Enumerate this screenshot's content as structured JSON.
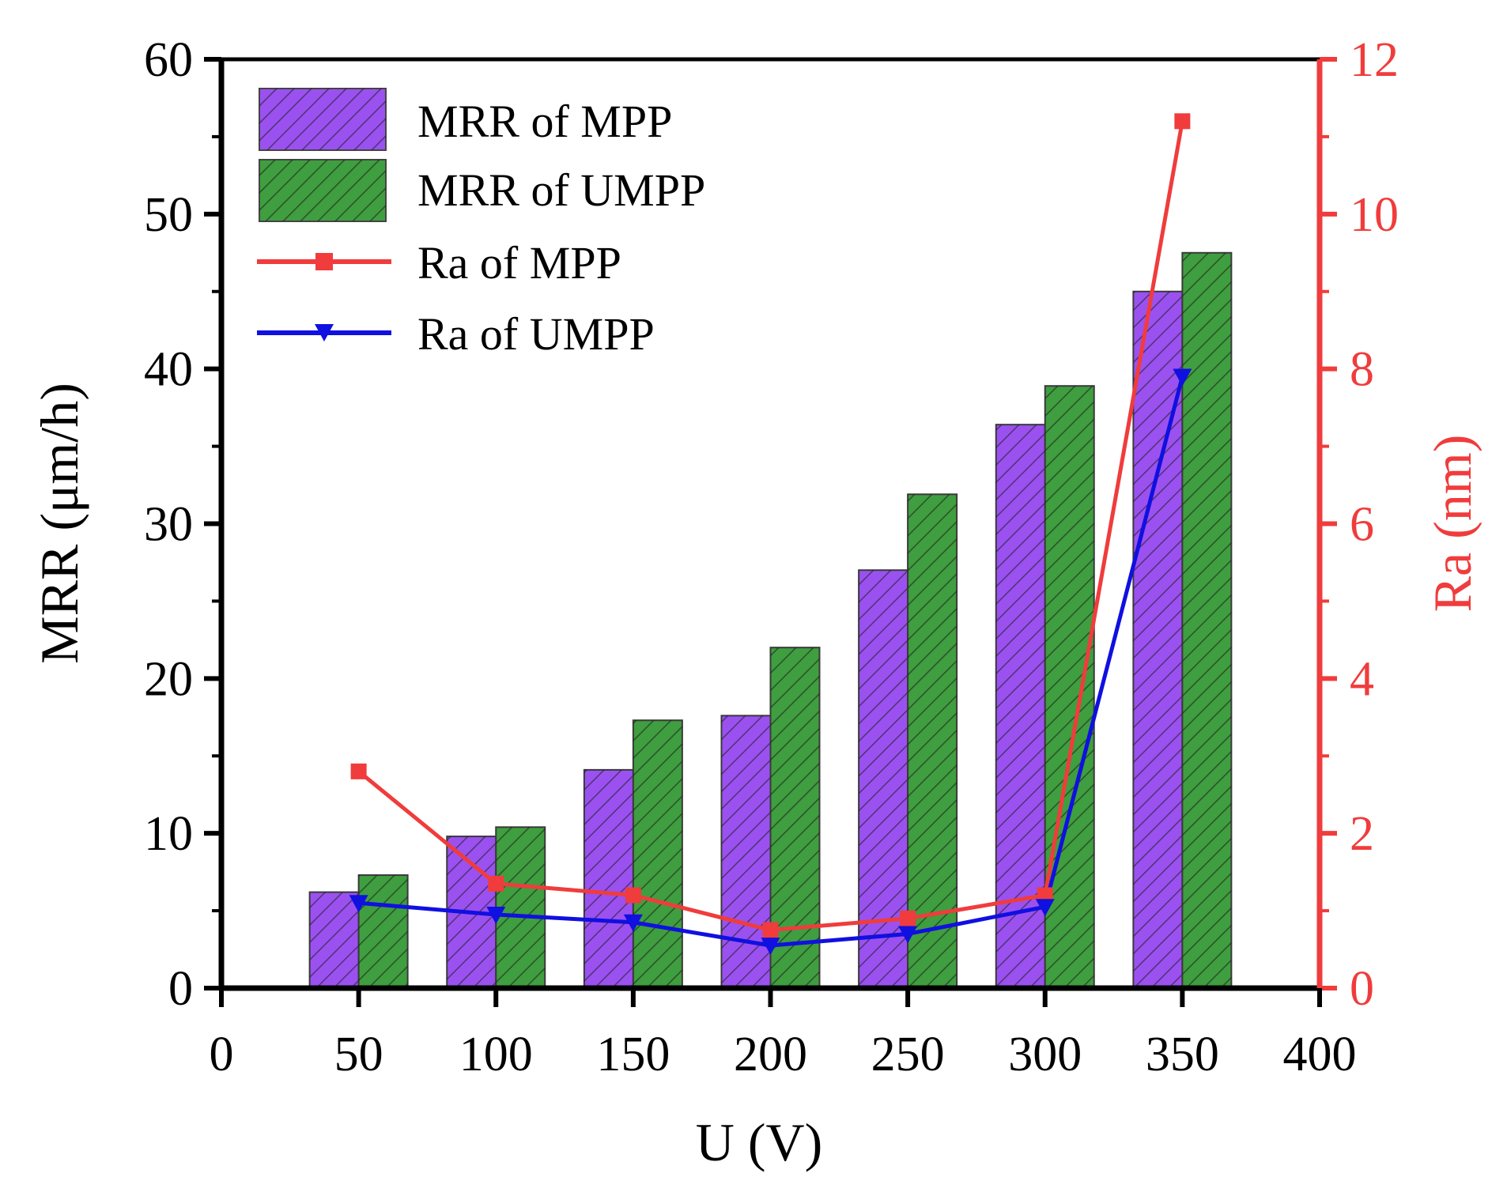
{
  "chart_data": {
    "type": "bar",
    "title": "",
    "xlabel": "U (V)",
    "ylabel": "MRR (μm/h)",
    "y2label": "Ra (nm)",
    "xlim": [
      0,
      400
    ],
    "ylim": [
      0,
      60
    ],
    "y2lim": [
      0,
      12
    ],
    "x_ticks": [
      0,
      50,
      100,
      150,
      200,
      250,
      300,
      350,
      400
    ],
    "y_ticks": [
      0,
      10,
      20,
      30,
      40,
      50,
      60
    ],
    "y2_ticks": [
      0,
      2,
      4,
      6,
      8,
      10,
      12
    ],
    "categories": [
      50,
      100,
      150,
      200,
      250,
      300,
      350
    ],
    "bar_series": [
      {
        "name": "MRR of MPP",
        "axis": "left",
        "color": "#9b51f0",
        "values": [
          6.2,
          9.8,
          14.1,
          17.6,
          27.0,
          36.4,
          45.0
        ]
      },
      {
        "name": "MRR of UMPP",
        "axis": "left",
        "color": "#3f9e3f",
        "values": [
          7.3,
          10.4,
          17.3,
          22.0,
          31.9,
          38.9,
          47.5
        ]
      }
    ],
    "line_series": [
      {
        "name": "Ra of MPP",
        "axis": "right",
        "color": "#f03c3c",
        "marker": "square",
        "values": [
          2.8,
          1.35,
          1.2,
          0.75,
          0.9,
          1.2,
          11.2
        ]
      },
      {
        "name": "Ra of UMPP",
        "axis": "right",
        "color": "#1010e0",
        "marker": "triangle-down",
        "values": [
          1.1,
          0.95,
          0.85,
          0.55,
          0.7,
          1.05,
          7.9
        ]
      }
    ],
    "legend_position": "top-left",
    "grid": false
  }
}
